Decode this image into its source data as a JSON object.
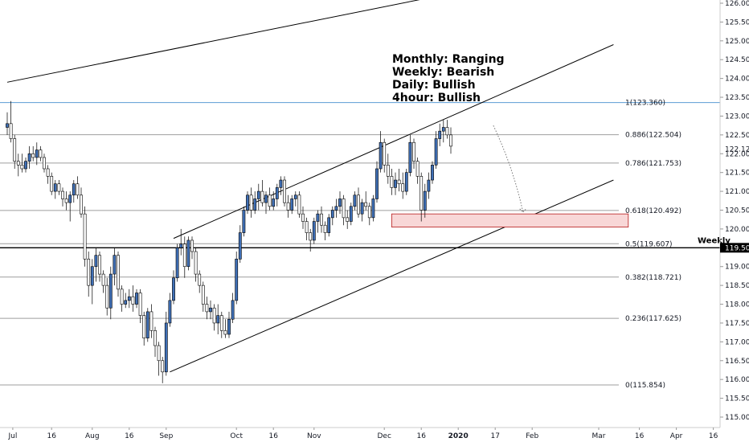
{
  "chart_data": {
    "type": "candlestick",
    "symbol_note": "",
    "ylim": [
      114.8,
      126.3
    ],
    "x_range": [
      0,
      190
    ],
    "y_ticks": [
      115.0,
      115.5,
      116.0,
      116.5,
      117.0,
      117.5,
      118.0,
      118.5,
      119.0,
      119.5,
      120.0,
      120.5,
      121.0,
      121.5,
      122.0,
      122.5,
      123.0,
      123.5,
      124.0,
      124.5,
      125.0,
      125.5,
      126.0
    ],
    "y_tick_labels": [
      "115.000",
      "115.500",
      "116.000",
      "116.500",
      "117.000",
      "117.500",
      "118.000",
      "118.500",
      "119.000",
      "119.500",
      "120.000",
      "120.500",
      "121.000",
      "121.500",
      "122.000",
      "122.500",
      "123.000",
      "123.500",
      "124.000",
      "124.500",
      "125.000",
      "125.500",
      "126.000"
    ],
    "x_ticks": [
      {
        "label": "Jul",
        "x": 1.5
      },
      {
        "label": "16",
        "x": 12
      },
      {
        "label": "Aug",
        "x": 23
      },
      {
        "label": "16",
        "x": 33
      },
      {
        "label": "Sep",
        "x": 43
      },
      {
        "label": "Oct",
        "x": 62
      },
      {
        "label": "16",
        "x": 72
      },
      {
        "label": "Nov",
        "x": 83
      },
      {
        "label": "Dec",
        "x": 102
      },
      {
        "label": "16",
        "x": 112
      },
      {
        "label": "2020",
        "x": 122
      },
      {
        "label": "17",
        "x": 132
      },
      {
        "label": "Feb",
        "x": 142
      },
      {
        "label": "Mar",
        "x": 160
      },
      {
        "label": "16",
        "x": 171
      },
      {
        "label": "Apr",
        "x": 181
      },
      {
        "label": "16",
        "x": 191
      }
    ],
    "current_price": {
      "value": 122.12,
      "label": "122.120"
    },
    "weekly_level": {
      "value": 119.5,
      "label": "119.500",
      "name": "Weekly"
    },
    "fib_levels": [
      {
        "ratio": 1,
        "value": 123.36,
        "label": "1(123.360)"
      },
      {
        "ratio": 0.886,
        "value": 122.504,
        "label": "0.886(122.504)"
      },
      {
        "ratio": 0.786,
        "value": 121.753,
        "label": "0.786(121.753)"
      },
      {
        "ratio": 0.618,
        "value": 120.492,
        "label": "0.618(120.492)"
      },
      {
        "ratio": 0.5,
        "value": 119.607,
        "label": "0.5(119.607)"
      },
      {
        "ratio": 0.382,
        "value": 118.721,
        "label": "0.382(118.721)"
      },
      {
        "ratio": 0.236,
        "value": 117.625,
        "label": "0.236(117.625)"
      },
      {
        "ratio": 0,
        "value": 115.854,
        "label": "0(115.854)"
      }
    ],
    "bias_annotations": [
      "Monthly: Ranging",
      "Weekly: Bearish",
      "Daily: Bullish",
      "4hour: Bullish"
    ],
    "trend_lines": [
      {
        "x1": 0,
        "y1": 123.9,
        "x2": 122,
        "y2": 126.3
      },
      {
        "x1": 45,
        "y1": 119.75,
        "x2": 164,
        "y2": 124.9
      },
      {
        "x1": 44,
        "y1": 116.2,
        "x2": 164,
        "y2": 121.3
      }
    ],
    "demand_zone": {
      "x1": 104,
      "x2": 168,
      "y_low": 120.05,
      "y_high": 120.4
    },
    "projection_path": [
      [
        131.5,
        122.75
      ],
      [
        137,
        121.6
      ],
      [
        139.5,
        120.45
      ]
    ],
    "candles": [
      {
        "o": 122.7,
        "h": 123.1,
        "l": 122.5,
        "c": 122.8
      },
      {
        "o": 122.8,
        "h": 123.4,
        "l": 122.3,
        "c": 122.4
      },
      {
        "o": 122.4,
        "h": 122.5,
        "l": 121.6,
        "c": 121.8
      },
      {
        "o": 121.8,
        "h": 122.0,
        "l": 121.4,
        "c": 121.7
      },
      {
        "o": 121.7,
        "h": 122.0,
        "l": 121.5,
        "c": 121.6
      },
      {
        "o": 121.6,
        "h": 121.9,
        "l": 121.5,
        "c": 121.8
      },
      {
        "o": 121.8,
        "h": 122.2,
        "l": 121.6,
        "c": 122.0
      },
      {
        "o": 122.0,
        "h": 122.2,
        "l": 121.8,
        "c": 121.9
      },
      {
        "o": 121.9,
        "h": 122.3,
        "l": 121.7,
        "c": 122.1
      },
      {
        "o": 122.1,
        "h": 122.2,
        "l": 121.8,
        "c": 121.9
      },
      {
        "o": 121.9,
        "h": 122.0,
        "l": 121.5,
        "c": 121.6
      },
      {
        "o": 121.6,
        "h": 121.7,
        "l": 121.2,
        "c": 121.4
      },
      {
        "o": 121.4,
        "h": 121.5,
        "l": 120.9,
        "c": 121.0
      },
      {
        "o": 121.0,
        "h": 121.3,
        "l": 120.8,
        "c": 121.2
      },
      {
        "o": 121.2,
        "h": 121.3,
        "l": 120.9,
        "c": 121.0
      },
      {
        "o": 121.0,
        "h": 121.1,
        "l": 120.6,
        "c": 120.8
      },
      {
        "o": 120.8,
        "h": 121.0,
        "l": 120.5,
        "c": 120.7
      },
      {
        "o": 120.7,
        "h": 121.0,
        "l": 120.2,
        "c": 120.9
      },
      {
        "o": 120.9,
        "h": 121.3,
        "l": 120.7,
        "c": 121.2
      },
      {
        "o": 121.2,
        "h": 121.4,
        "l": 120.8,
        "c": 120.9
      },
      {
        "o": 120.9,
        "h": 121.1,
        "l": 120.3,
        "c": 120.4
      },
      {
        "o": 120.4,
        "h": 120.6,
        "l": 119.0,
        "c": 119.2
      },
      {
        "o": 119.2,
        "h": 119.4,
        "l": 118.2,
        "c": 118.5
      },
      {
        "o": 118.5,
        "h": 119.2,
        "l": 118.0,
        "c": 119.0
      },
      {
        "o": 119.0,
        "h": 119.5,
        "l": 118.6,
        "c": 119.3
      },
      {
        "o": 119.3,
        "h": 119.4,
        "l": 118.6,
        "c": 118.8
      },
      {
        "o": 118.8,
        "h": 118.9,
        "l": 118.3,
        "c": 118.5
      },
      {
        "o": 118.5,
        "h": 118.7,
        "l": 117.7,
        "c": 117.9
      },
      {
        "o": 117.9,
        "h": 119.0,
        "l": 117.6,
        "c": 118.8
      },
      {
        "o": 118.8,
        "h": 119.5,
        "l": 118.5,
        "c": 119.3
      },
      {
        "o": 119.3,
        "h": 119.4,
        "l": 118.2,
        "c": 118.4
      },
      {
        "o": 118.4,
        "h": 118.5,
        "l": 117.8,
        "c": 118.0
      },
      {
        "o": 118.0,
        "h": 118.3,
        "l": 117.9,
        "c": 118.1
      },
      {
        "o": 118.1,
        "h": 118.4,
        "l": 117.9,
        "c": 118.2
      },
      {
        "o": 118.2,
        "h": 118.5,
        "l": 117.8,
        "c": 118.0
      },
      {
        "o": 118.0,
        "h": 118.4,
        "l": 117.9,
        "c": 118.3
      },
      {
        "o": 118.3,
        "h": 118.4,
        "l": 117.5,
        "c": 117.7
      },
      {
        "o": 117.7,
        "h": 117.8,
        "l": 116.9,
        "c": 117.1
      },
      {
        "o": 117.1,
        "h": 117.9,
        "l": 117.0,
        "c": 117.8
      },
      {
        "o": 117.8,
        "h": 118.0,
        "l": 117.1,
        "c": 117.3
      },
      {
        "o": 117.3,
        "h": 117.4,
        "l": 116.6,
        "c": 116.9
      },
      {
        "o": 116.9,
        "h": 117.0,
        "l": 116.1,
        "c": 116.5
      },
      {
        "o": 116.5,
        "h": 116.6,
        "l": 115.9,
        "c": 116.2
      },
      {
        "o": 116.2,
        "h": 117.8,
        "l": 116.1,
        "c": 117.5
      },
      {
        "o": 117.5,
        "h": 118.3,
        "l": 117.4,
        "c": 118.1
      },
      {
        "o": 118.1,
        "h": 118.9,
        "l": 118.0,
        "c": 118.7
      },
      {
        "o": 118.7,
        "h": 119.6,
        "l": 118.6,
        "c": 119.5
      },
      {
        "o": 119.5,
        "h": 120.0,
        "l": 119.3,
        "c": 119.6
      },
      {
        "o": 119.6,
        "h": 119.8,
        "l": 118.7,
        "c": 119.0
      },
      {
        "o": 119.0,
        "h": 119.8,
        "l": 118.9,
        "c": 119.7
      },
      {
        "o": 119.7,
        "h": 119.8,
        "l": 119.2,
        "c": 119.4
      },
      {
        "o": 119.4,
        "h": 119.5,
        "l": 118.6,
        "c": 118.8
      },
      {
        "o": 118.8,
        "h": 118.9,
        "l": 118.3,
        "c": 118.5
      },
      {
        "o": 118.5,
        "h": 118.6,
        "l": 117.8,
        "c": 118.0
      },
      {
        "o": 118.0,
        "h": 118.2,
        "l": 117.6,
        "c": 117.8
      },
      {
        "o": 117.8,
        "h": 118.1,
        "l": 117.6,
        "c": 117.9
      },
      {
        "o": 117.9,
        "h": 118.0,
        "l": 117.3,
        "c": 117.5
      },
      {
        "o": 117.5,
        "h": 118.0,
        "l": 117.2,
        "c": 117.7
      },
      {
        "o": 117.7,
        "h": 117.8,
        "l": 117.1,
        "c": 117.3
      },
      {
        "o": 117.3,
        "h": 117.6,
        "l": 117.1,
        "c": 117.2
      },
      {
        "o": 117.2,
        "h": 117.8,
        "l": 117.1,
        "c": 117.6
      },
      {
        "o": 117.6,
        "h": 118.3,
        "l": 117.5,
        "c": 118.1
      },
      {
        "o": 118.1,
        "h": 119.4,
        "l": 118.0,
        "c": 119.2
      },
      {
        "o": 119.2,
        "h": 120.1,
        "l": 119.1,
        "c": 119.9
      },
      {
        "o": 119.9,
        "h": 120.6,
        "l": 119.8,
        "c": 120.5
      },
      {
        "o": 120.5,
        "h": 121.0,
        "l": 120.4,
        "c": 120.9
      },
      {
        "o": 120.9,
        "h": 121.1,
        "l": 120.3,
        "c": 120.5
      },
      {
        "o": 120.5,
        "h": 121.0,
        "l": 120.4,
        "c": 120.8
      },
      {
        "o": 120.8,
        "h": 121.2,
        "l": 120.5,
        "c": 121.0
      },
      {
        "o": 121.0,
        "h": 121.3,
        "l": 120.6,
        "c": 120.7
      },
      {
        "o": 120.7,
        "h": 121.0,
        "l": 120.4,
        "c": 120.9
      },
      {
        "o": 120.9,
        "h": 121.1,
        "l": 120.5,
        "c": 120.6
      },
      {
        "o": 120.6,
        "h": 121.0,
        "l": 120.5,
        "c": 120.8
      },
      {
        "o": 120.8,
        "h": 121.2,
        "l": 120.6,
        "c": 121.1
      },
      {
        "o": 121.1,
        "h": 121.4,
        "l": 120.9,
        "c": 121.3
      },
      {
        "o": 121.3,
        "h": 121.4,
        "l": 120.6,
        "c": 120.7
      },
      {
        "o": 120.7,
        "h": 120.9,
        "l": 120.3,
        "c": 120.5
      },
      {
        "o": 120.5,
        "h": 120.9,
        "l": 120.4,
        "c": 120.8
      },
      {
        "o": 120.8,
        "h": 121.0,
        "l": 120.6,
        "c": 120.9
      },
      {
        "o": 120.9,
        "h": 121.0,
        "l": 120.3,
        "c": 120.4
      },
      {
        "o": 120.4,
        "h": 120.6,
        "l": 120.0,
        "c": 120.2
      },
      {
        "o": 120.2,
        "h": 120.3,
        "l": 119.7,
        "c": 119.9
      },
      {
        "o": 119.9,
        "h": 120.0,
        "l": 119.4,
        "c": 119.7
      },
      {
        "o": 119.7,
        "h": 120.3,
        "l": 119.6,
        "c": 120.2
      },
      {
        "o": 120.2,
        "h": 120.5,
        "l": 119.9,
        "c": 120.4
      },
      {
        "o": 120.4,
        "h": 120.6,
        "l": 119.9,
        "c": 120.1
      },
      {
        "o": 120.1,
        "h": 120.2,
        "l": 119.7,
        "c": 119.9
      },
      {
        "o": 119.9,
        "h": 120.4,
        "l": 119.8,
        "c": 120.3
      },
      {
        "o": 120.3,
        "h": 120.6,
        "l": 120.1,
        "c": 120.5
      },
      {
        "o": 120.5,
        "h": 120.8,
        "l": 120.3,
        "c": 120.6
      },
      {
        "o": 120.6,
        "h": 121.0,
        "l": 120.4,
        "c": 120.8
      },
      {
        "o": 120.8,
        "h": 120.9,
        "l": 120.1,
        "c": 120.3
      },
      {
        "o": 120.3,
        "h": 120.5,
        "l": 120.0,
        "c": 120.2
      },
      {
        "o": 120.2,
        "h": 120.7,
        "l": 120.1,
        "c": 120.6
      },
      {
        "o": 120.6,
        "h": 121.0,
        "l": 120.5,
        "c": 120.9
      },
      {
        "o": 120.9,
        "h": 121.1,
        "l": 120.3,
        "c": 120.4
      },
      {
        "o": 120.4,
        "h": 120.8,
        "l": 120.2,
        "c": 120.7
      },
      {
        "o": 120.7,
        "h": 121.0,
        "l": 120.5,
        "c": 120.6
      },
      {
        "o": 120.6,
        "h": 120.7,
        "l": 120.1,
        "c": 120.3
      },
      {
        "o": 120.3,
        "h": 120.9,
        "l": 120.2,
        "c": 120.8
      },
      {
        "o": 120.8,
        "h": 121.8,
        "l": 120.7,
        "c": 121.6
      },
      {
        "o": 121.6,
        "h": 122.6,
        "l": 121.5,
        "c": 122.3
      },
      {
        "o": 122.3,
        "h": 122.4,
        "l": 121.5,
        "c": 121.7
      },
      {
        "o": 121.7,
        "h": 122.0,
        "l": 121.2,
        "c": 121.4
      },
      {
        "o": 121.4,
        "h": 121.6,
        "l": 120.9,
        "c": 121.1
      },
      {
        "o": 121.1,
        "h": 121.5,
        "l": 120.9,
        "c": 121.3
      },
      {
        "o": 121.3,
        "h": 121.6,
        "l": 121.0,
        "c": 121.2
      },
      {
        "o": 121.2,
        "h": 121.5,
        "l": 120.8,
        "c": 121.0
      },
      {
        "o": 121.0,
        "h": 121.6,
        "l": 120.9,
        "c": 121.5
      },
      {
        "o": 121.5,
        "h": 122.5,
        "l": 121.4,
        "c": 122.3
      },
      {
        "o": 122.3,
        "h": 122.4,
        "l": 121.6,
        "c": 121.8
      },
      {
        "o": 121.8,
        "h": 121.9,
        "l": 121.2,
        "c": 121.4
      },
      {
        "o": 121.4,
        "h": 121.5,
        "l": 120.2,
        "c": 120.5
      },
      {
        "o": 120.5,
        "h": 121.2,
        "l": 120.3,
        "c": 121.0
      },
      {
        "o": 121.0,
        "h": 121.5,
        "l": 120.8,
        "c": 121.3
      },
      {
        "o": 121.3,
        "h": 121.8,
        "l": 121.2,
        "c": 121.7
      },
      {
        "o": 121.7,
        "h": 122.6,
        "l": 121.6,
        "c": 122.4
      },
      {
        "o": 122.4,
        "h": 122.8,
        "l": 122.2,
        "c": 122.6
      },
      {
        "o": 122.6,
        "h": 122.9,
        "l": 122.3,
        "c": 122.7
      },
      {
        "o": 122.7,
        "h": 122.9,
        "l": 122.4,
        "c": 122.5
      },
      {
        "o": 122.5,
        "h": 122.7,
        "l": 122.0,
        "c": 122.2
      }
    ]
  }
}
